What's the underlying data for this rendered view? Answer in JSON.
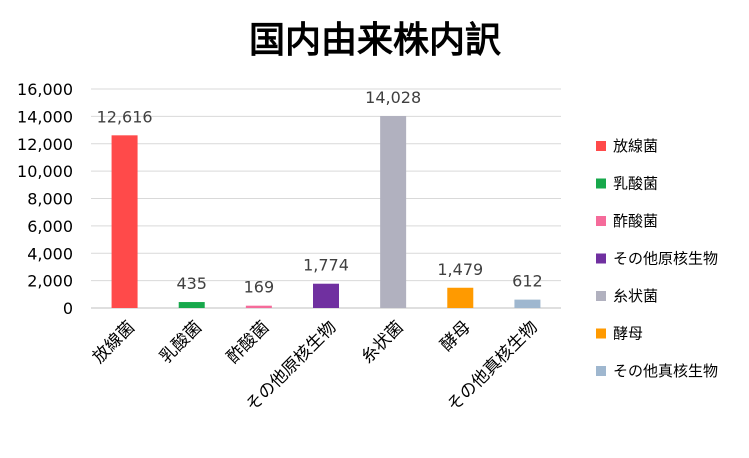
{
  "chart_data": {
    "type": "bar",
    "title": "国内由来株内訳",
    "categories": [
      "放線菌",
      "乳酸菌",
      "酢酸菌",
      "その他原核生物",
      "糸状菌",
      "酵母",
      "その他真核生物"
    ],
    "values": [
      12616,
      435,
      169,
      1774,
      14028,
      1479,
      612
    ],
    "value_labels": [
      "12,616",
      "435",
      "169",
      "1,774",
      "14,028",
      "1,479",
      "612"
    ],
    "colors": [
      "#ff4a4a",
      "#17a84b",
      "#f56b9a",
      "#7030a0",
      "#b1b1bf",
      "#ff9a00",
      "#9fb7cf"
    ],
    "ylim": [
      0,
      16000
    ],
    "yticks": [
      0,
      2000,
      4000,
      6000,
      8000,
      10000,
      12000,
      14000,
      16000
    ],
    "ytick_labels": [
      "0",
      "2,000",
      "4,000",
      "6,000",
      "8,000",
      "10,000",
      "12,000",
      "14,000",
      "16,000"
    ],
    "grid": true,
    "legend_position": "right",
    "xlabel": "",
    "ylabel": ""
  }
}
